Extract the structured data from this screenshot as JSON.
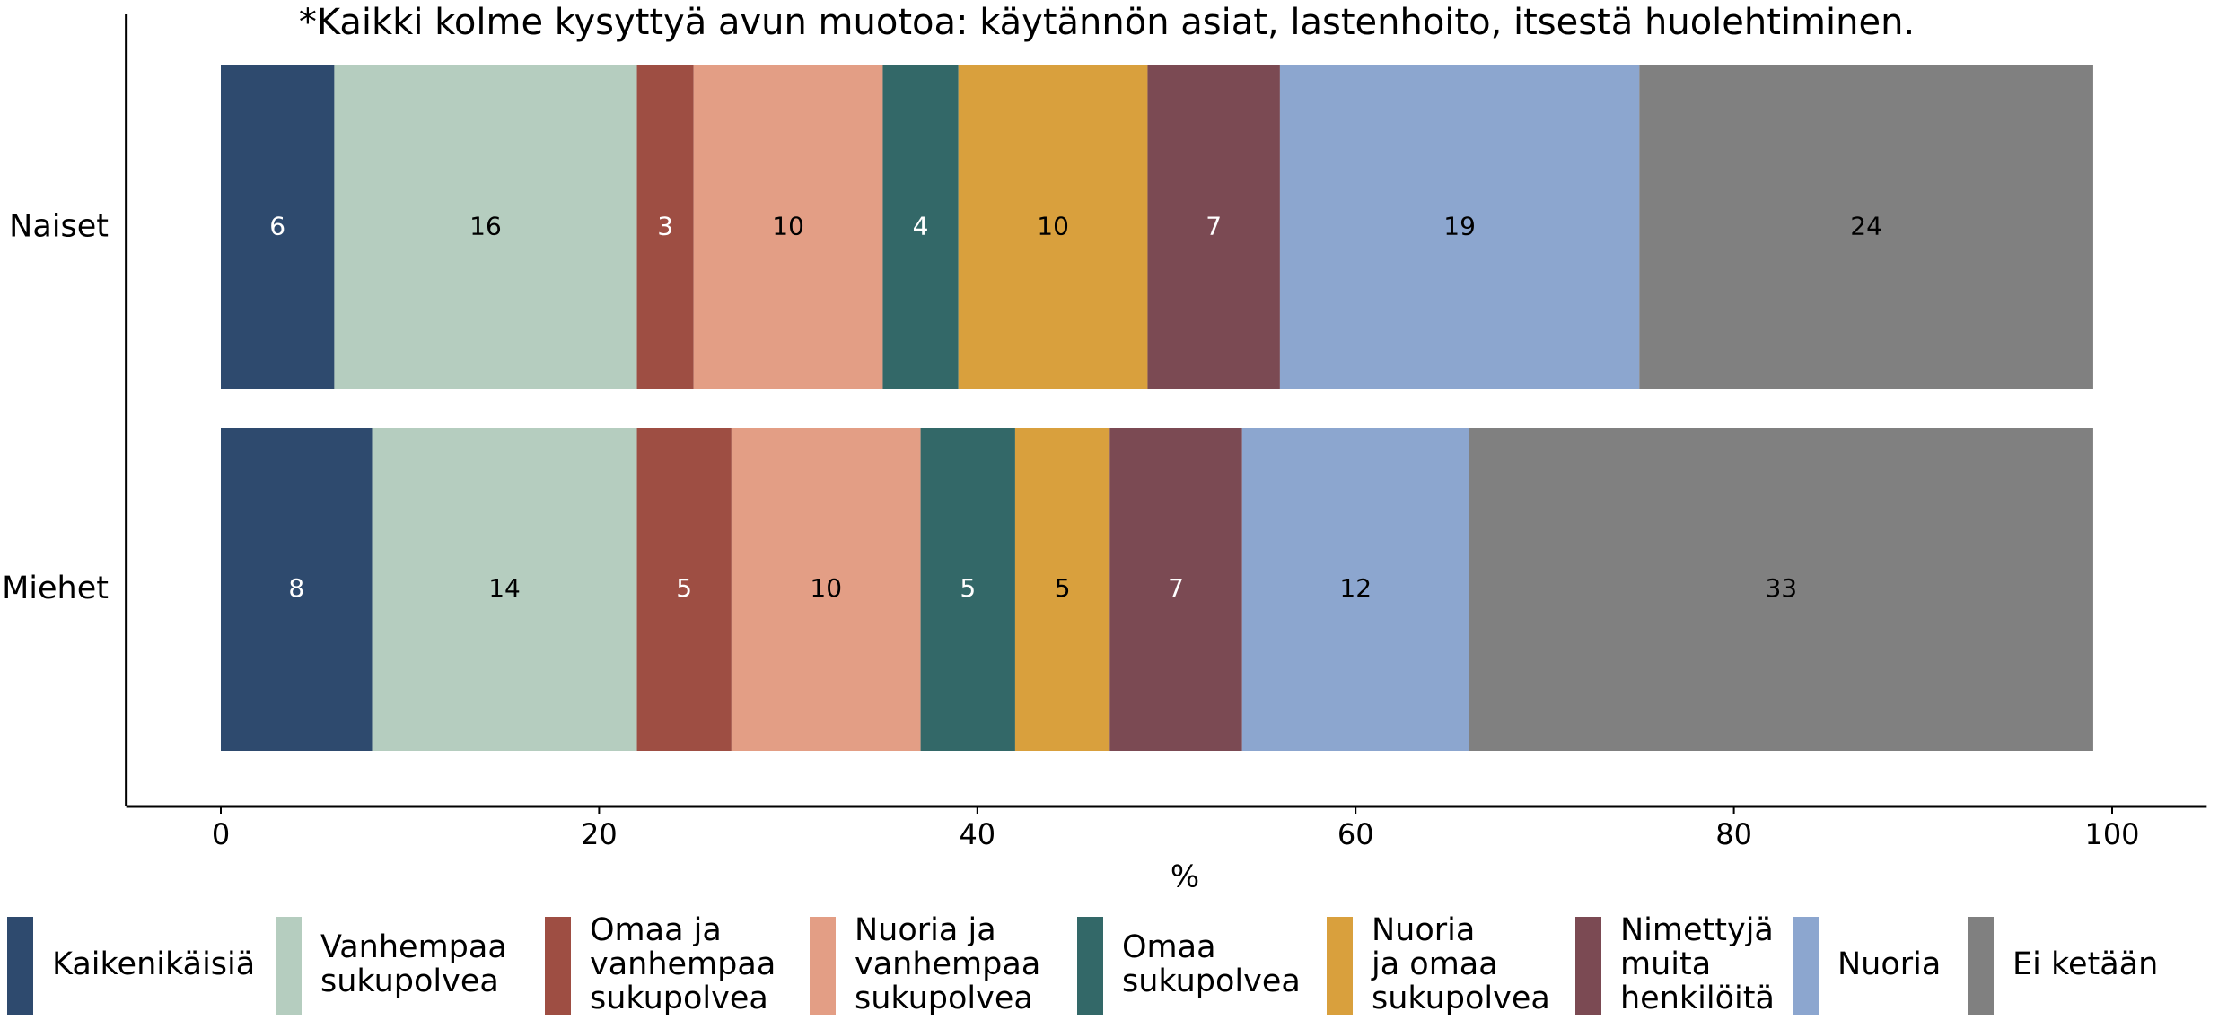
{
  "chart_data": {
    "type": "bar",
    "orientation": "horizontal",
    "stacked": true,
    "title": "*Kaikki kolme kysyttyä avun muotoa: käytännön asiat, lastenhoito, itsestä huolehtiminen.",
    "xlabel": "%",
    "categories": [
      "Naiset",
      "Miehet"
    ],
    "xlim": [
      -5,
      105
    ],
    "xticks": [
      0,
      20,
      40,
      60,
      80,
      100
    ],
    "legend": "bottom",
    "series": [
      {
        "name": "Kaikenikäisiä",
        "color": "#2e4a6e",
        "label_color": "#ffffff",
        "values": [
          6,
          8
        ]
      },
      {
        "name": "Vanhempaa\nsukupolvea",
        "color": "#b5cdbf",
        "label_color": "#000000",
        "values": [
          16,
          14
        ]
      },
      {
        "name": "Omaa ja\nvanhempaa\nsukupolvea",
        "color": "#9e4e43",
        "label_color": "#ffffff",
        "values": [
          3,
          5
        ]
      },
      {
        "name": "Nuoria ja\nvanhempaa\nsukupolvea",
        "color": "#e39e85",
        "label_color": "#000000",
        "values": [
          10,
          10
        ]
      },
      {
        "name": "Omaa\nsukupolvea",
        "color": "#336868",
        "label_color": "#ffffff",
        "values": [
          4,
          5
        ]
      },
      {
        "name": "Nuoria\nja omaa\nsukupolvea",
        "color": "#d9a03d",
        "label_color": "#000000",
        "values": [
          10,
          5
        ]
      },
      {
        "name": "Nimettyjä\nmuita\nhenkilöitä",
        "color": "#7b4a53",
        "label_color": "#ffffff",
        "values": [
          7,
          7
        ]
      },
      {
        "name": "Nuoria",
        "color": "#8ca6cf",
        "label_color": "#000000",
        "values": [
          19,
          12
        ]
      },
      {
        "name": "Ei ketään",
        "color": "#808080",
        "label_color": "#000000",
        "values": [
          24,
          33
        ]
      }
    ]
  }
}
